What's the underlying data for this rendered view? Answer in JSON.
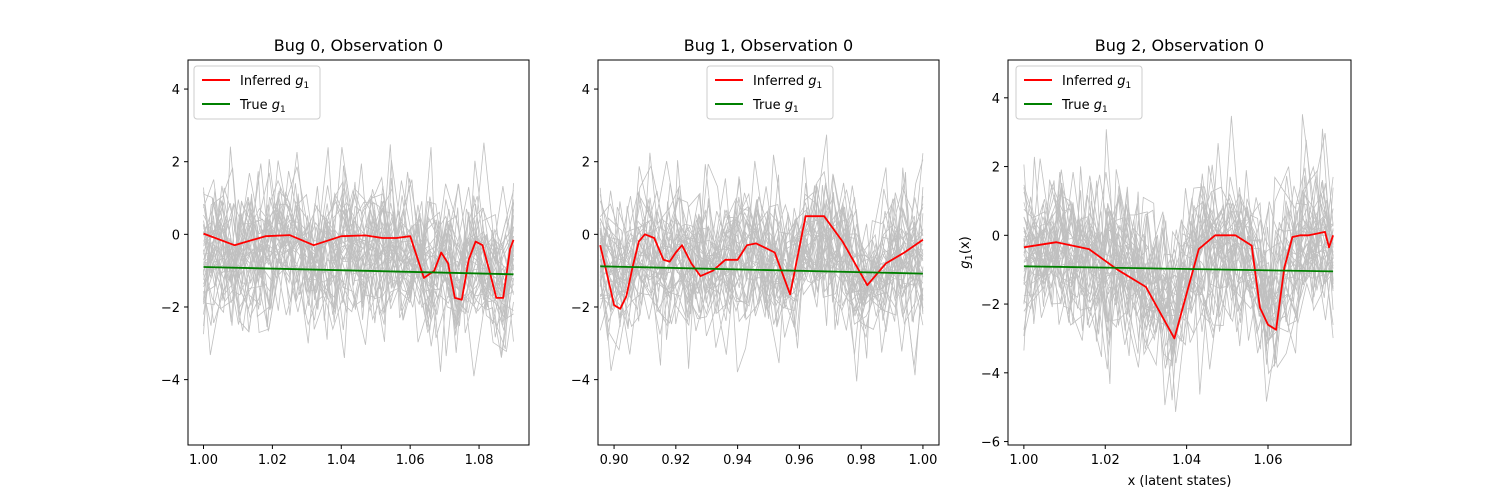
{
  "chart_data": [
    {
      "type": "line",
      "title": "Bug 0, Observation 0",
      "xlabel": "",
      "ylabel": "",
      "xlim": [
        0.9955,
        1.0945
      ],
      "ylim": [
        -5.8,
        4.8
      ],
      "xticks": [
        1.0,
        1.02,
        1.04,
        1.06,
        1.08
      ],
      "xtick_labels": [
        "1.00",
        "1.02",
        "1.04",
        "1.06",
        "1.08"
      ],
      "yticks": [
        -4,
        -2,
        0,
        2,
        4
      ],
      "ytick_labels": [
        "−4",
        "−2",
        "0",
        "2",
        "4"
      ],
      "legend_position": "upper-left",
      "samples": {
        "count": 40,
        "mean_amplitude": 1.0,
        "color": "#c0c0c0",
        "note_visible": false
      },
      "series": [
        {
          "name": "Inferred $g_1$",
          "label_text": "Inferred ",
          "label_sub": "1",
          "color": "#ff0000",
          "x": [
            1.0,
            1.009,
            1.018,
            1.025,
            1.032,
            1.04,
            1.047,
            1.052,
            1.056,
            1.06,
            1.064,
            1.067,
            1.069,
            1.071,
            1.073,
            1.075,
            1.077,
            1.079,
            1.081,
            1.083,
            1.085,
            1.087,
            1.089,
            1.09
          ],
          "values": [
            0.02,
            -0.3,
            -0.05,
            -0.02,
            -0.3,
            -0.05,
            -0.03,
            -0.1,
            -0.1,
            -0.05,
            -1.2,
            -1.0,
            -0.5,
            -0.8,
            -1.75,
            -1.8,
            -0.7,
            -0.2,
            -0.3,
            -1.0,
            -1.75,
            -1.75,
            -0.4,
            -0.15
          ]
        },
        {
          "name": "True $g_1$",
          "label_text": "True ",
          "label_sub": "1",
          "color": "#008000",
          "x": [
            1.0,
            1.09
          ],
          "values": [
            -0.9,
            -1.1
          ]
        }
      ]
    },
    {
      "type": "line",
      "title": "Bug 1, Observation 0",
      "xlabel": "",
      "ylabel": "",
      "xlim": [
        0.8948,
        1.0052
      ],
      "ylim": [
        -5.8,
        4.8
      ],
      "xticks": [
        0.9,
        0.92,
        0.94,
        0.96,
        0.98,
        1.0
      ],
      "xtick_labels": [
        "0.90",
        "0.92",
        "0.94",
        "0.96",
        "0.98",
        "1.00"
      ],
      "yticks": [
        -4,
        -2,
        0,
        2,
        4
      ],
      "ytick_labels": [
        "−4",
        "−2",
        "0",
        "2",
        "4"
      ],
      "legend_position": "upper-center",
      "samples": {
        "count": 40,
        "mean_amplitude": 1.0,
        "color": "#c0c0c0",
        "note_visible": false
      },
      "series": [
        {
          "name": "Inferred $g_1$",
          "label_text": "Inferred ",
          "label_sub": "1",
          "color": "#ff0000",
          "x": [
            0.8955,
            0.898,
            0.9,
            0.902,
            0.904,
            0.906,
            0.908,
            0.91,
            0.913,
            0.916,
            0.918,
            0.92,
            0.922,
            0.925,
            0.928,
            0.932,
            0.936,
            0.94,
            0.943,
            0.946,
            0.952,
            0.957,
            0.962,
            0.968,
            0.974,
            0.978,
            0.982,
            0.988,
            0.994,
            1.0
          ],
          "values": [
            -0.3,
            -1.2,
            -1.95,
            -2.05,
            -1.7,
            -0.9,
            -0.2,
            0.0,
            -0.1,
            -0.7,
            -0.75,
            -0.5,
            -0.3,
            -0.8,
            -1.15,
            -1.0,
            -0.7,
            -0.7,
            -0.3,
            -0.25,
            -0.5,
            -1.65,
            0.5,
            0.5,
            -0.2,
            -0.8,
            -1.4,
            -0.8,
            -0.5,
            -0.15
          ]
        },
        {
          "name": "True $g_1$",
          "label_text": "True ",
          "label_sub": "1",
          "color": "#008000",
          "x": [
            0.8955,
            1.0
          ],
          "values": [
            -0.88,
            -1.08
          ]
        }
      ]
    },
    {
      "type": "line",
      "title": "Bug 2, Observation 0",
      "xlabel": "x (latent states)",
      "ylabel": "g1(x)",
      "ylabel_main": "g",
      "ylabel_sub": "1",
      "ylabel_tail": "(x)",
      "xlim": [
        0.9961,
        1.0804
      ],
      "ylim": [
        -6.1,
        5.1
      ],
      "xticks": [
        1.0,
        1.02,
        1.04,
        1.06
      ],
      "xtick_labels": [
        "1.00",
        "1.02",
        "1.04",
        "1.06"
      ],
      "yticks": [
        -6,
        -4,
        -2,
        0,
        2,
        4
      ],
      "ytick_labels": [
        "−6",
        "−4",
        "−2",
        "0",
        "2",
        "4"
      ],
      "legend_position": "upper-left",
      "samples": {
        "count": 40,
        "mean_amplitude": 1.2,
        "color": "#c0c0c0",
        "note_visible": false
      },
      "series": [
        {
          "name": "Inferred $g_1$",
          "label_text": "Inferred ",
          "label_sub": "1",
          "color": "#ff0000",
          "x": [
            1.0,
            1.008,
            1.016,
            1.023,
            1.03,
            1.037,
            1.043,
            1.047,
            1.052,
            1.056,
            1.058,
            1.06,
            1.062,
            1.064,
            1.066,
            1.068,
            1.07,
            1.072,
            1.074,
            1.075,
            1.076
          ],
          "values": [
            -0.35,
            -0.2,
            -0.4,
            -1.0,
            -1.5,
            -3.0,
            -0.4,
            0.0,
            0.0,
            -0.3,
            -2.1,
            -2.6,
            -2.75,
            -0.95,
            -0.05,
            0.0,
            0.0,
            0.05,
            0.1,
            -0.35,
            0.0
          ]
        },
        {
          "name": "True $g_1$",
          "label_text": "True ",
          "label_sub": "1",
          "color": "#008000",
          "x": [
            1.0,
            1.076
          ],
          "values": [
            -0.9,
            -1.05
          ]
        }
      ]
    }
  ]
}
